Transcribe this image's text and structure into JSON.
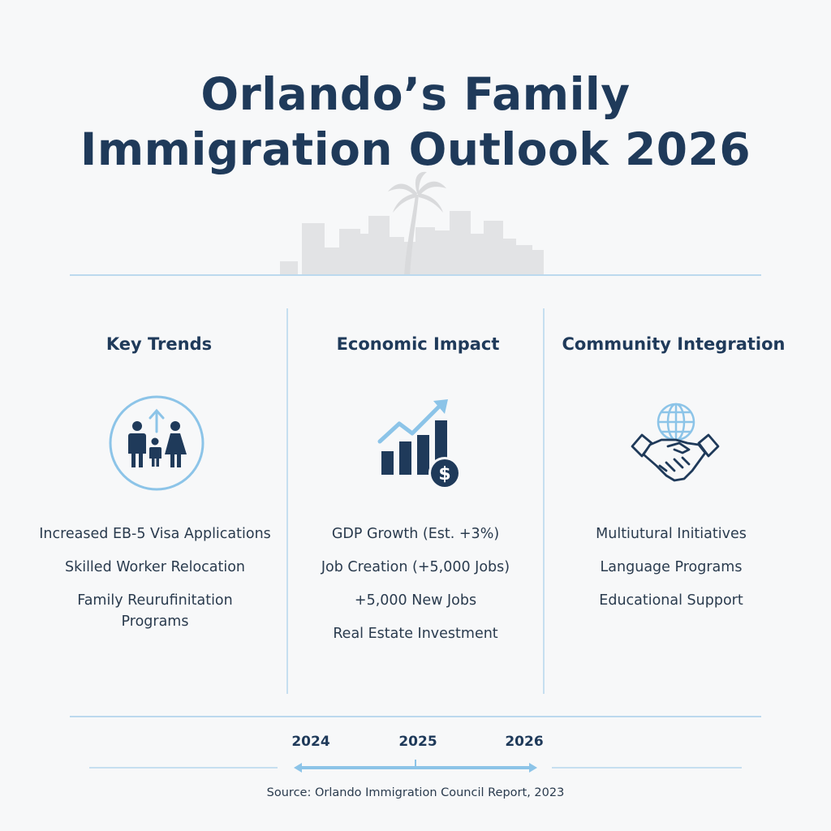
{
  "title": {
    "line1": "Orlando’s Family",
    "line2": "Immigration Outlook 2026"
  },
  "columns": [
    {
      "heading": "Key Trends",
      "icon": "family-growth-icon",
      "items": [
        "Increased EB-5 Visa Applications",
        "Skilled Worker Relocation",
        "Family Reurufinitation Programs"
      ]
    },
    {
      "heading": "Economic Impact",
      "icon": "growth-chart-dollar-icon",
      "items": [
        "GDP Growth (Est. +3%)",
        "Job Creation (+5,000 Jobs)",
        "+5,000 New Jobs",
        "Real Estate Investment"
      ]
    },
    {
      "heading": "Community Integration",
      "icon": "globe-handshake-icon",
      "items": [
        "Multiutural Initiatives",
        "Language Programs",
        "Educational Support"
      ]
    }
  ],
  "timeline": {
    "years": [
      "2024",
      "2025",
      "2026"
    ]
  },
  "source": "Source: Orlando Immigration Council Report, 2023",
  "colors": {
    "navy": "#1f3a5a",
    "accent_blue": "#8cc4e8",
    "skyline_gray": "#e3e4e6"
  }
}
